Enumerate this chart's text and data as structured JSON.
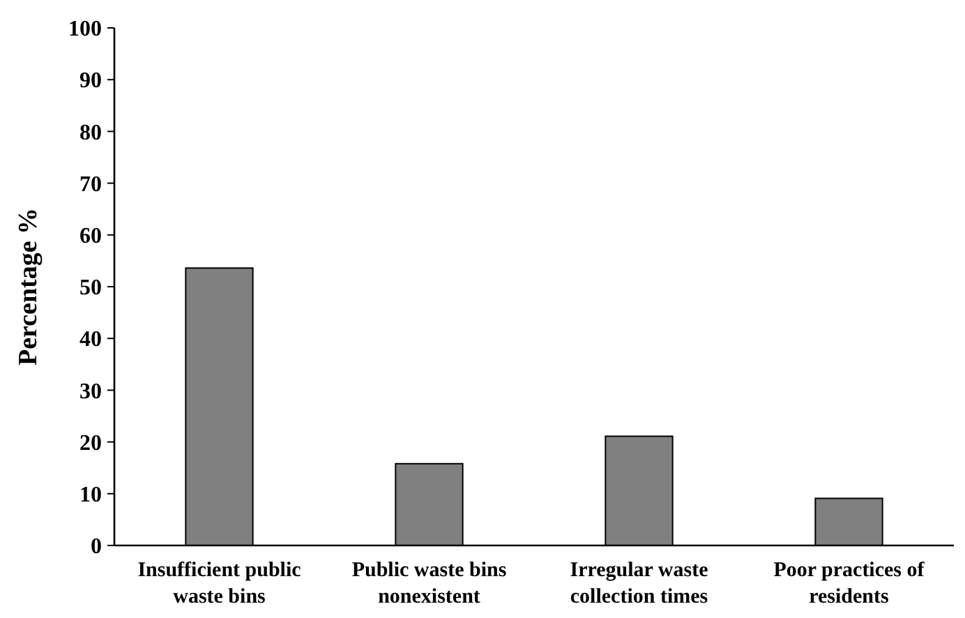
{
  "chart_data": {
    "type": "bar",
    "ylabel": "Percentage %",
    "categories": [
      "Insufficient public waste bins",
      "Public waste bins nonexistent",
      "Irregular waste collection times",
      "Poor practices of residents"
    ],
    "values": [
      53.6,
      15.8,
      21.1,
      9.1
    ],
    "color": "#808080",
    "ylim": [
      0,
      100
    ],
    "yticks": [
      0,
      10,
      20,
      30,
      40,
      50,
      60,
      70,
      80,
      90,
      100
    ],
    "grid": false
  }
}
